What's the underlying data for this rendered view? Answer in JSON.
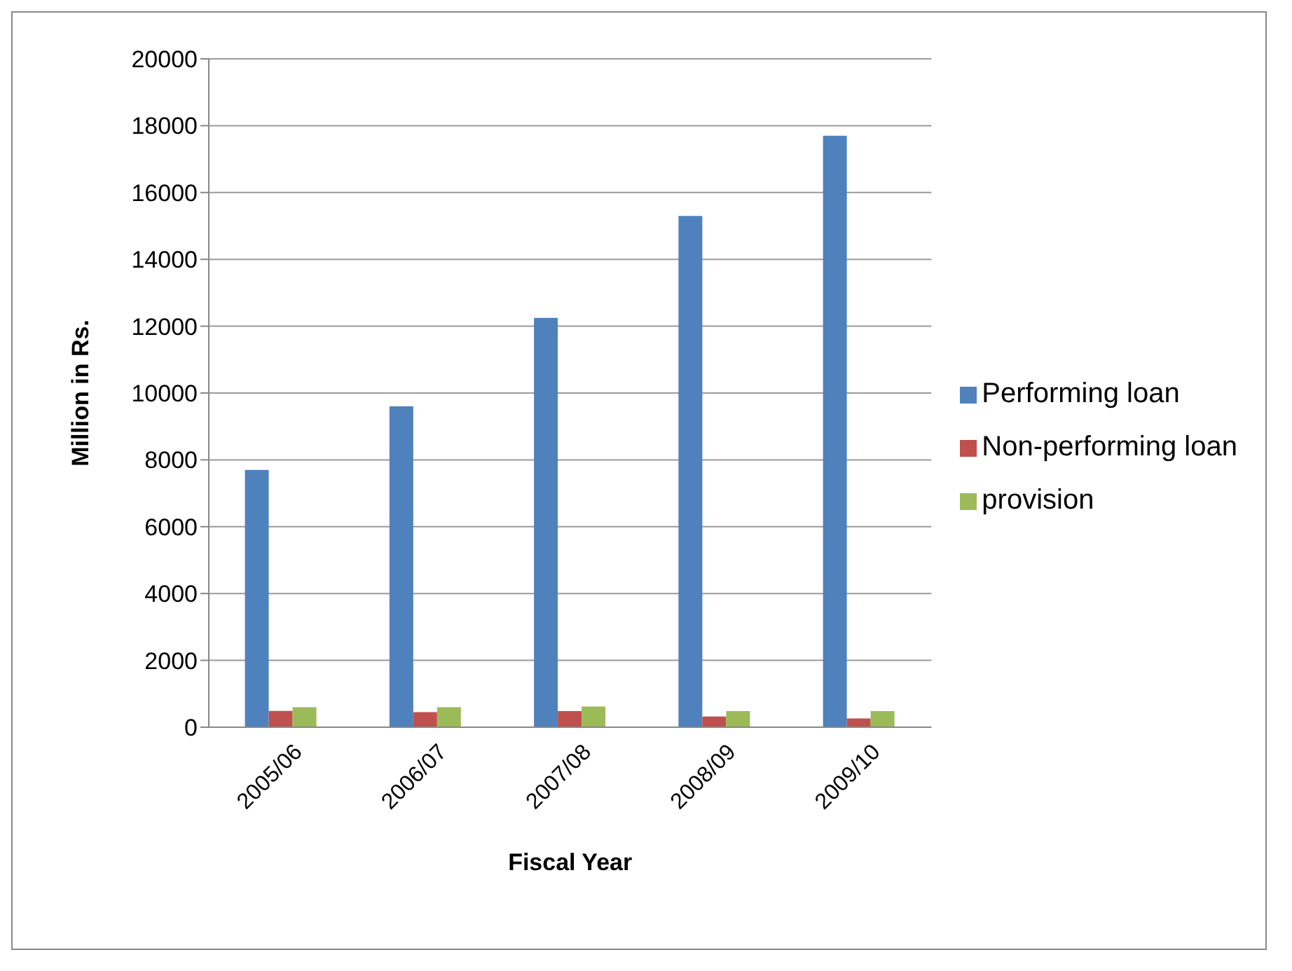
{
  "chart_data": {
    "type": "bar",
    "xlabel": "Fiscal Year",
    "ylabel": "Million in Rs.",
    "categories": [
      "2005/06",
      "2006/07",
      "2007/08",
      "2008/09",
      "2009/10"
    ],
    "series": [
      {
        "name": "Performing loan",
        "color": "#4f81bd",
        "values": [
          7700,
          9600,
          12250,
          15300,
          17700
        ]
      },
      {
        "name": "Non-performing loan",
        "color": "#c0504d",
        "values": [
          490,
          450,
          480,
          320,
          260
        ]
      },
      {
        "name": "provision",
        "color": "#9bbb59",
        "values": [
          600,
          600,
          620,
          480,
          480
        ]
      }
    ],
    "ylim": [
      0,
      20000
    ],
    "yticks": [
      0,
      2000,
      4000,
      6000,
      8000,
      10000,
      12000,
      14000,
      16000,
      18000,
      20000
    ],
    "grid": "y",
    "legend": "right"
  }
}
